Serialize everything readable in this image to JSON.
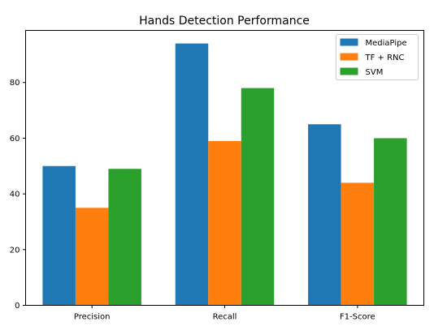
{
  "chart_data": {
    "type": "bar",
    "title": "Hands Detection Performance",
    "xlabel": "",
    "ylabel": "",
    "categories": [
      "Precision",
      "Recall",
      "F1-Score"
    ],
    "series": [
      {
        "name": "MediaPipe",
        "color": "#1f77b4",
        "values": [
          50,
          94,
          65
        ]
      },
      {
        "name": "TF + RNC",
        "color": "#ff7f0e",
        "values": [
          35,
          59,
          44
        ]
      },
      {
        "name": "SVM",
        "color": "#2ca02c",
        "values": [
          49,
          78,
          60
        ]
      }
    ],
    "ylim": [
      0,
      98.7
    ],
    "yticks": [
      0,
      20,
      40,
      60,
      80
    ],
    "grid": false,
    "legend_position": "top-right"
  }
}
